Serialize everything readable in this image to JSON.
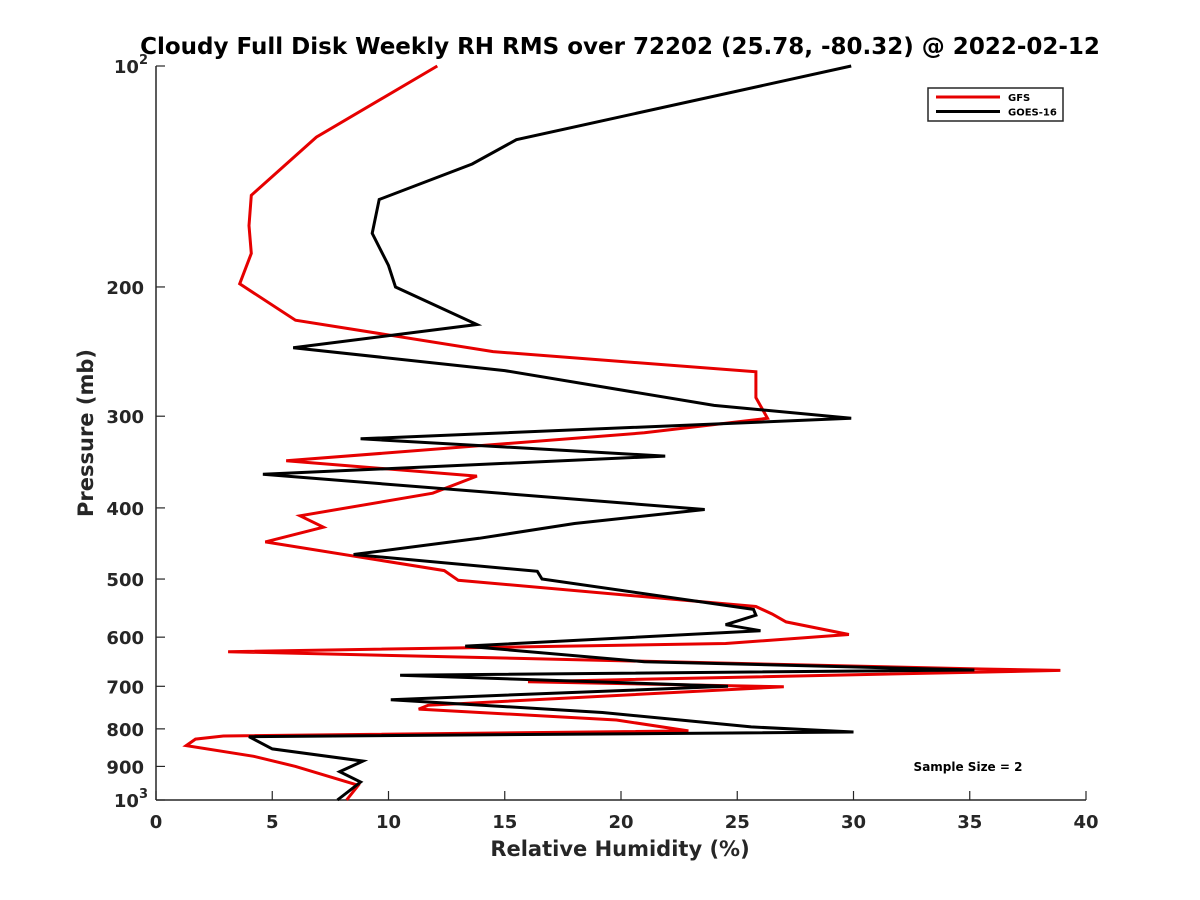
{
  "chart_data": {
    "type": "line",
    "title": "Cloudy Full Disk Weekly RH RMS over 72202 (25.78, -80.32) @ 2022-02-12",
    "xlabel": "Relative Humidity (%)",
    "ylabel": "Pressure (mb)",
    "xlim": [
      0,
      40
    ],
    "ylim": [
      100,
      1000
    ],
    "y_scale": "log",
    "y_reversed": true,
    "grid": false,
    "legend_position": "top-right",
    "x_ticks": [
      "0",
      "5",
      "10",
      "15",
      "20",
      "25",
      "30",
      "35",
      "40"
    ],
    "y_ticks": [
      {
        "value": 100,
        "base": "10",
        "exp": "2"
      },
      {
        "value": 200,
        "text": "200"
      },
      {
        "value": 300,
        "text": "300"
      },
      {
        "value": 400,
        "text": "400"
      },
      {
        "value": 500,
        "text": "500"
      },
      {
        "value": 600,
        "text": "600"
      },
      {
        "value": 700,
        "text": "700"
      },
      {
        "value": 800,
        "text": "800"
      },
      {
        "value": 900,
        "text": "900"
      },
      {
        "value": 1000,
        "base": "10",
        "exp": "3"
      }
    ],
    "annotation": "Sample Size = 2",
    "series": [
      {
        "name": "GFS",
        "color": "#e60000",
        "points": [
          [
            12.1,
            100
          ],
          [
            6.9,
            125
          ],
          [
            4.1,
            150
          ],
          [
            4.0,
            165
          ],
          [
            4.1,
            180
          ],
          [
            3.6,
            198
          ],
          [
            6.0,
            222
          ],
          [
            14.5,
            245
          ],
          [
            25.8,
            261
          ],
          [
            25.8,
            283
          ],
          [
            26.3,
            302
          ],
          [
            21.0,
            316
          ],
          [
            5.6,
            345
          ],
          [
            13.8,
            362
          ],
          [
            11.9,
            382
          ],
          [
            6.2,
            410
          ],
          [
            7.2,
            425
          ],
          [
            4.7,
            445
          ],
          [
            12.4,
            487
          ],
          [
            13.0,
            502
          ],
          [
            25.8,
            545
          ],
          [
            26.5,
            558
          ],
          [
            27.1,
            572
          ],
          [
            29.8,
            595
          ],
          [
            24.5,
            612
          ],
          [
            3.1,
            628
          ],
          [
            35.5,
            663
          ],
          [
            38.9,
            666
          ],
          [
            16.0,
            690
          ],
          [
            27.0,
            701
          ],
          [
            11.7,
            743
          ],
          [
            11.3,
            752
          ],
          [
            19.8,
            778
          ],
          [
            22.9,
            805
          ],
          [
            2.9,
            818
          ],
          [
            1.7,
            826
          ],
          [
            1.3,
            843
          ],
          [
            4.2,
            872
          ],
          [
            6.0,
            900
          ],
          [
            8.7,
            955
          ],
          [
            8.2,
            1000
          ]
        ]
      },
      {
        "name": "GOES-16",
        "color": "#000000",
        "points": [
          [
            29.9,
            100
          ],
          [
            15.5,
            126
          ],
          [
            13.6,
            136
          ],
          [
            9.6,
            152
          ],
          [
            9.3,
            169
          ],
          [
            10.0,
            187
          ],
          [
            10.3,
            200
          ],
          [
            13.8,
            225
          ],
          [
            5.9,
            242
          ],
          [
            15.0,
            260
          ],
          [
            24.0,
            290
          ],
          [
            29.9,
            302
          ],
          [
            8.8,
            322
          ],
          [
            21.9,
            340
          ],
          [
            4.6,
            360
          ],
          [
            23.6,
            402
          ],
          [
            18.0,
            420
          ],
          [
            13.9,
            440
          ],
          [
            8.5,
            463
          ],
          [
            16.4,
            488
          ],
          [
            16.6,
            500
          ],
          [
            25.7,
            550
          ],
          [
            25.8,
            560
          ],
          [
            24.5,
            577
          ],
          [
            26.0,
            588
          ],
          [
            13.3,
            617
          ],
          [
            21.0,
            648
          ],
          [
            35.2,
            665
          ],
          [
            10.5,
            676
          ],
          [
            24.6,
            700
          ],
          [
            10.1,
            730
          ],
          [
            19.2,
            760
          ],
          [
            25.6,
            795
          ],
          [
            30.0,
            808
          ],
          [
            4.0,
            820
          ],
          [
            5.0,
            852
          ],
          [
            8.9,
            885
          ],
          [
            7.9,
            915
          ],
          [
            8.8,
            945
          ],
          [
            7.8,
            1000
          ]
        ]
      }
    ]
  }
}
